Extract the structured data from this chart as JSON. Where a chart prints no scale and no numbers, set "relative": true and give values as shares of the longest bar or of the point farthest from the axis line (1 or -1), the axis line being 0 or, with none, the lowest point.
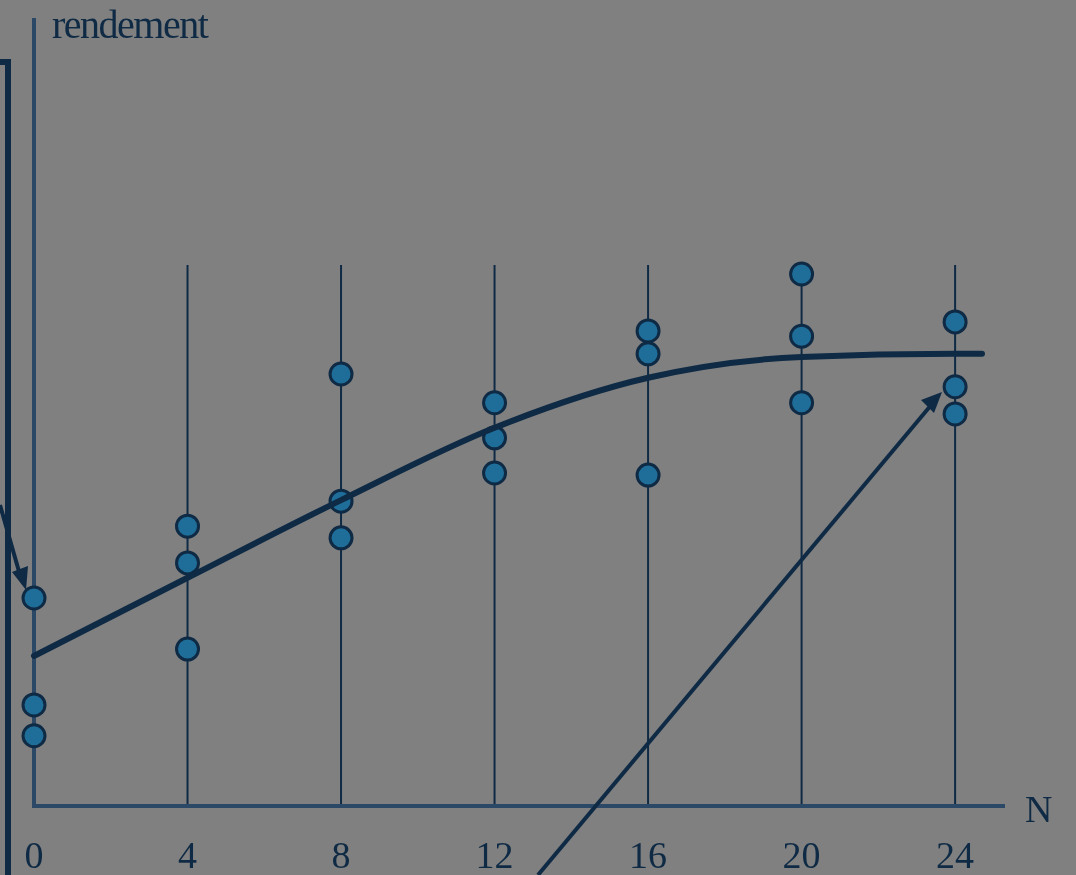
{
  "chart_data": {
    "type": "scatter",
    "relative": true,
    "xlabel": "N",
    "annotations": [
      "rendement"
    ],
    "xlim": [
      0,
      25.3
    ],
    "xticks": [
      0,
      4,
      8,
      12,
      16,
      20,
      24
    ],
    "grid": "x",
    "series": [
      {
        "marker": "circle",
        "color": "#1f6e9a",
        "x": [
          0,
          0,
          0,
          4,
          4,
          4,
          8,
          8,
          8,
          12,
          12,
          12,
          16,
          16,
          16,
          20,
          20,
          20,
          24,
          24,
          24
        ],
        "values": [
          0.391,
          0.19,
          0.132,
          0.526,
          0.457,
          0.295,
          0.812,
          0.573,
          0.504,
          0.758,
          0.692,
          0.626,
          0.893,
          0.85,
          0.622,
          1.0,
          0.883,
          0.758,
          0.91,
          0.788,
          0.737
        ]
      },
      {
        "type": "line",
        "marker": "none",
        "color": "#0f2a44",
        "x": [
          0,
          4,
          8,
          12,
          16,
          20,
          24,
          24.7
        ],
        "values": [
          0.282,
          0.429,
          0.575,
          0.711,
          0.805,
          0.844,
          0.85,
          0.85
        ]
      }
    ]
  }
}
